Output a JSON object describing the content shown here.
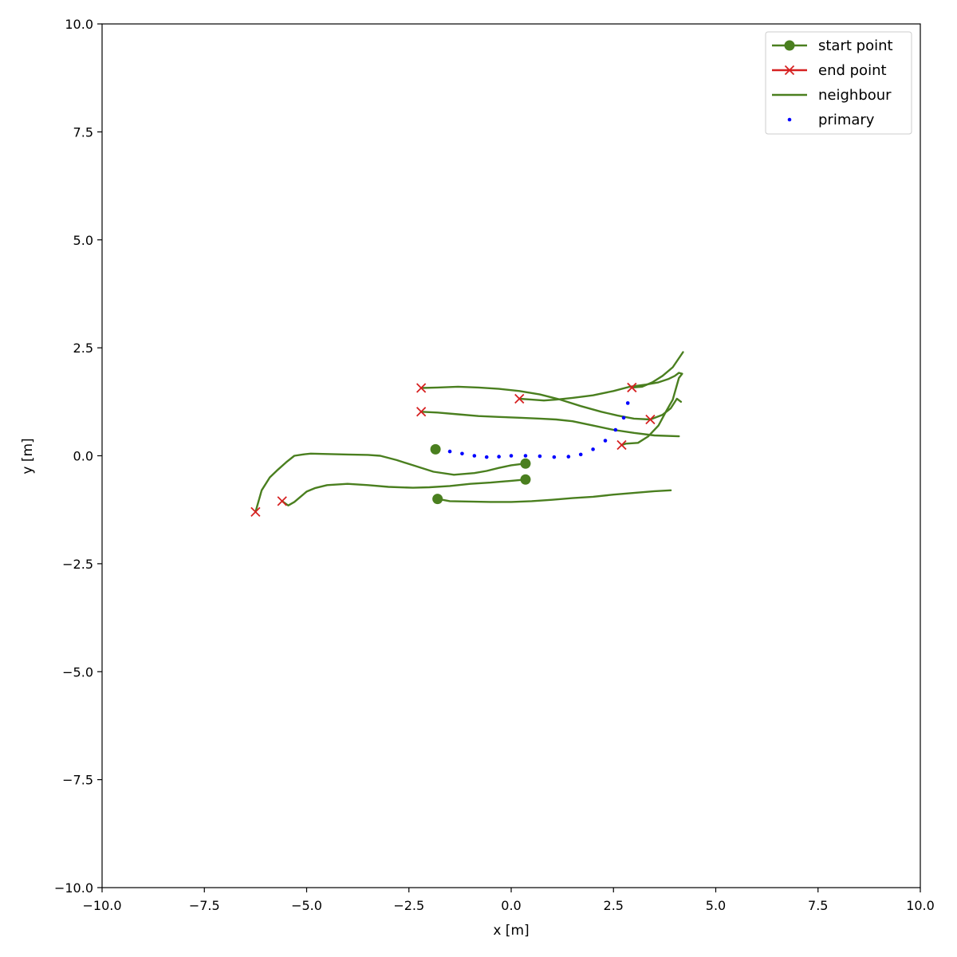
{
  "chart_data": {
    "type": "line",
    "xlabel": "x [m]",
    "ylabel": "y [m]",
    "xlim": [
      -10,
      10
    ],
    "ylim": [
      -10,
      10
    ],
    "grid": false,
    "legend_position": "top-right",
    "xticks": [
      -10,
      -7.5,
      -5,
      -2.5,
      0,
      2.5,
      5,
      7.5,
      10
    ],
    "yticks": [
      -10,
      -7.5,
      -5,
      -2.5,
      0,
      2.5,
      5,
      7.5,
      10
    ],
    "xtick_labels": [
      "−10.0",
      "−7.5",
      "−5.0",
      "−2.5",
      "0.0",
      "2.5",
      "5.0",
      "7.5",
      "10.0"
    ],
    "ytick_labels": [
      "−10.0",
      "−7.5",
      "−5.0",
      "−2.5",
      "0.0",
      "2.5",
      "5.0",
      "7.5",
      "10.0"
    ],
    "legend": [
      {
        "label": "start point",
        "marker": "circle",
        "color": "#4a7f1f"
      },
      {
        "label": "end point",
        "marker": "x",
        "color": "#d62020"
      },
      {
        "label": "neighbour",
        "marker": "line",
        "color": "#4a7f1f"
      },
      {
        "label": "primary",
        "marker": "dot",
        "color": "#0000ff"
      }
    ],
    "colors": {
      "neighbour": "#4a7f1f",
      "end": "#d62020",
      "primary": "#0000ff"
    },
    "primary": {
      "x": [
        -1.85,
        -1.5,
        -1.2,
        -0.9,
        -0.6,
        -0.3,
        0.0,
        0.35,
        0.7,
        1.05,
        1.4,
        1.7,
        2.0,
        2.3,
        2.55,
        2.75,
        2.85
      ],
      "y": [
        0.15,
        0.1,
        0.05,
        0.0,
        -0.03,
        -0.02,
        0.0,
        0.0,
        -0.01,
        -0.03,
        -0.02,
        0.03,
        0.15,
        0.35,
        0.6,
        0.88,
        1.22
      ]
    },
    "neighbours": [
      {
        "x": [
          0.35,
          0.0,
          -0.3,
          -0.6,
          -0.9,
          -1.4,
          -1.9,
          -2.4,
          -2.8,
          -3.2,
          -3.5,
          -4.0,
          -4.5,
          -4.9,
          -5.1,
          -5.3,
          -5.5,
          -5.7,
          -5.9,
          -6.1,
          -6.25
        ],
        "y": [
          -0.18,
          -0.22,
          -0.28,
          -0.35,
          -0.4,
          -0.44,
          -0.37,
          -0.22,
          -0.1,
          0.0,
          0.02,
          0.03,
          0.04,
          0.05,
          0.03,
          0.0,
          -0.15,
          -0.32,
          -0.5,
          -0.8,
          -1.3
        ]
      },
      {
        "x": [
          0.35,
          0.0,
          -0.5,
          -1.0,
          -1.5,
          -2.0,
          -2.4,
          -3.0,
          -3.5,
          -4.0,
          -4.5,
          -4.8,
          -5.0,
          -5.15,
          -5.3,
          -5.45,
          -5.6
        ],
        "y": [
          -0.55,
          -0.58,
          -0.62,
          -0.65,
          -0.7,
          -0.73,
          -0.74,
          -0.72,
          -0.68,
          -0.65,
          -0.68,
          -0.75,
          -0.83,
          -0.95,
          -1.07,
          -1.15,
          -1.05
        ]
      },
      {
        "x": [
          -1.8,
          -1.5,
          -1.0,
          -0.5,
          0.0,
          0.5,
          1.0,
          1.5,
          2.0,
          2.5,
          3.0,
          3.5,
          3.9
        ],
        "y": [
          -1.0,
          -1.05,
          -1.06,
          -1.07,
          -1.07,
          -1.05,
          -1.02,
          -0.98,
          -0.95,
          -0.9,
          -0.86,
          -0.82,
          -0.8
        ]
      },
      {
        "x": [
          0.2,
          0.5,
          0.8,
          1.1,
          1.5,
          2.0,
          2.5,
          2.9,
          3.3,
          3.6,
          3.85,
          4.0,
          4.1,
          4.18,
          4.1,
          3.95,
          3.8,
          3.6,
          3.35,
          3.1,
          2.8,
          2.7
        ],
        "y": [
          1.32,
          1.3,
          1.28,
          1.3,
          1.34,
          1.4,
          1.5,
          1.6,
          1.65,
          1.7,
          1.78,
          1.85,
          1.92,
          1.9,
          1.8,
          1.3,
          1.05,
          0.7,
          0.45,
          0.3,
          0.28,
          0.25
        ]
      },
      {
        "x": [
          -2.2,
          -1.8,
          -1.3,
          -0.8,
          -0.3,
          0.2,
          0.7,
          1.2,
          1.7,
          2.2,
          2.6,
          3.0,
          3.4,
          3.7,
          3.9,
          4.05,
          4.15
        ],
        "y": [
          1.57,
          1.58,
          1.6,
          1.58,
          1.55,
          1.5,
          1.42,
          1.3,
          1.15,
          1.02,
          0.93,
          0.86,
          0.84,
          0.95,
          1.1,
          1.32,
          1.25
        ]
      },
      {
        "x": [
          -2.2,
          -1.8,
          -1.3,
          -0.8,
          -0.3,
          0.2,
          0.7,
          1.1,
          1.5,
          2.0,
          2.5,
          3.0,
          3.5,
          4.1
        ],
        "y": [
          1.02,
          1.0,
          0.96,
          0.92,
          0.9,
          0.88,
          0.86,
          0.84,
          0.8,
          0.7,
          0.6,
          0.53,
          0.47,
          0.45
        ]
      },
      {
        "x": [
          2.95,
          3.2,
          3.45,
          3.7,
          3.95,
          4.2
        ],
        "y": [
          1.58,
          1.6,
          1.7,
          1.85,
          2.05,
          2.4
        ]
      }
    ],
    "start_points": [
      {
        "x": -1.85,
        "y": 0.15
      },
      {
        "x": 0.35,
        "y": -0.18
      },
      {
        "x": 0.35,
        "y": -0.55
      },
      {
        "x": -1.8,
        "y": -1.0
      }
    ],
    "end_points": [
      {
        "x": -2.2,
        "y": 1.57
      },
      {
        "x": -2.2,
        "y": 1.02
      },
      {
        "x": 0.2,
        "y": 1.32
      },
      {
        "x": 2.95,
        "y": 1.58
      },
      {
        "x": 3.4,
        "y": 0.84
      },
      {
        "x": 2.7,
        "y": 0.25
      },
      {
        "x": -5.6,
        "y": -1.05
      },
      {
        "x": -6.25,
        "y": -1.3
      }
    ]
  }
}
